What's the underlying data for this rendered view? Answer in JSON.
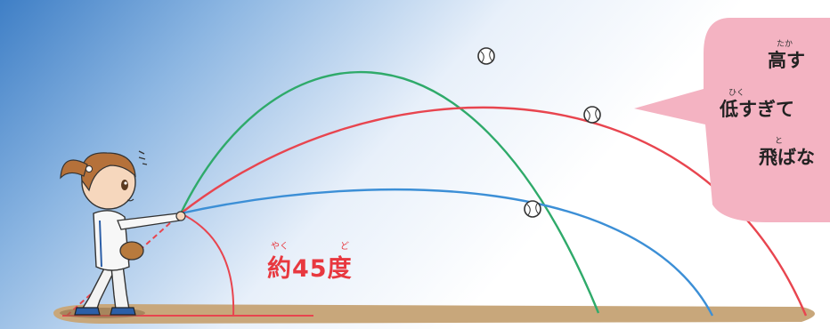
{
  "angle_label": "約45度",
  "angle_ruby": [
    "やく",
    "ど"
  ],
  "bubble": {
    "line1": "高す",
    "line1_ruby": "たか",
    "line2": "低すぎて",
    "line2_ruby": "ひく",
    "line3": "飛ばな",
    "line3_ruby": "と"
  },
  "colors": {
    "high_trajectory": "#2faa6a",
    "mid_trajectory": "#e8454f",
    "low_trajectory": "#3c8fd6",
    "ground": "#c8a77b",
    "bubble": "#f4b3c2"
  }
}
